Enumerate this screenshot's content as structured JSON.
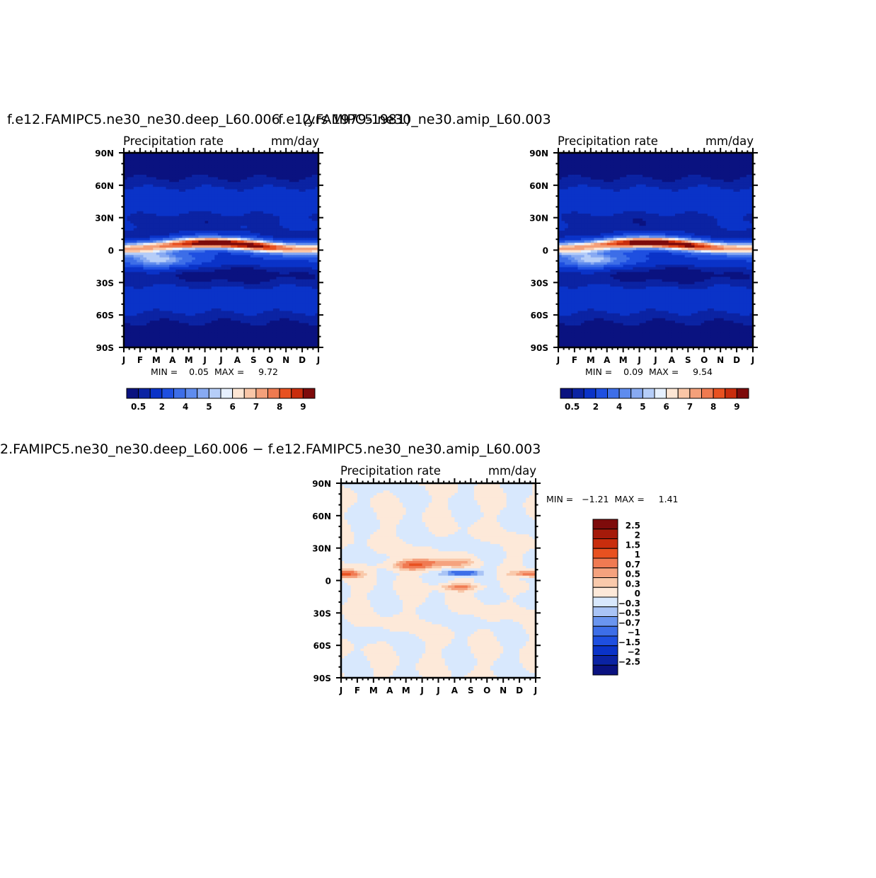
{
  "panels": [
    {
      "case_title": "f.e12.FAMIPC5.ne30_ne30.deep_L60.006",
      "variable": "Precipitation  rate",
      "units": "mm/day",
      "minmax": "MIN =    0.05  MAX =     9.72",
      "colorbar_labels": [
        "0.5",
        "2",
        "4",
        "5",
        "6",
        "7",
        "8",
        "9"
      ]
    },
    {
      "case_title": "f.e12.FAMIPC5.ne30_ne30.amip_L60.003",
      "overlap_title": "(yrs 1979-1981)",
      "variable": "Precipitation  rate",
      "units": "mm/day",
      "minmax": "MIN =    0.09  MAX =     9.54",
      "colorbar_labels": [
        "0.5",
        "2",
        "4",
        "5",
        "6",
        "7",
        "8",
        "9"
      ]
    },
    {
      "case_title": "2.FAMIPC5.ne30_ne30.deep_L60.006  −  f.e12.FAMIPC5.ne30_ne30.amip_L60.003",
      "variable": "Precipitation  rate",
      "units": "mm/day",
      "minmax": "MIN =   −1.21  MAX =     1.41",
      "colorbar_labels": [
        "2.5",
        "2",
        "1.5",
        "1",
        "0.7",
        "0.5",
        "0.3",
        "0",
        "−0.3",
        "−0.5",
        "−0.7",
        "−1",
        "−1.5",
        "−2",
        "−2.5"
      ]
    }
  ],
  "chart_data": [
    {
      "type": "heatmap",
      "title": "f.e12.FAMIPC5.ne30_ne30.deep_L60.006",
      "variable": "Precipitation  rate",
      "units": "mm/day",
      "x_tick_labels": [
        "J",
        "F",
        "M",
        "A",
        "M",
        "J",
        "J",
        "A",
        "S",
        "O",
        "N",
        "D",
        "J"
      ],
      "y_tick_labels": [
        "90N",
        "60N",
        "30N",
        "0",
        "30S",
        "60S",
        "90S"
      ],
      "ylim": [
        -90,
        90
      ],
      "min": 0.05,
      "max": 9.72,
      "levels": [
        0.5,
        1,
        2,
        3,
        4,
        4.5,
        5,
        5.5,
        6,
        6.5,
        7,
        7.5,
        8,
        8.5,
        9
      ],
      "colors": [
        "#0a1280",
        "#0b23a3",
        "#0a33c8",
        "#1e4fe0",
        "#3d6ee8",
        "#5f8cee",
        "#88aaf2",
        "#b5cdf8",
        "#e6f0fe",
        "#fde6d4",
        "#f9c6a7",
        "#f4a07a",
        "#ee7a50",
        "#e85120",
        "#c92d0d",
        "#7e0b0b"
      ],
      "band": {
        "lat": [
          0,
          10
        ],
        "max_months": [
          "J",
          "J",
          "A",
          "S",
          "O",
          "N"
        ]
      }
    },
    {
      "type": "heatmap",
      "title": "f.e12.FAMIPC5.ne30_ne30.amip_L60.003",
      "variable": "Precipitation  rate",
      "units": "mm/day",
      "x_tick_labels": [
        "J",
        "F",
        "M",
        "A",
        "M",
        "J",
        "J",
        "A",
        "S",
        "O",
        "N",
        "D",
        "J"
      ],
      "y_tick_labels": [
        "90N",
        "60N",
        "30N",
        "0",
        "30S",
        "60S",
        "90S"
      ],
      "ylim": [
        -90,
        90
      ],
      "min": 0.09,
      "max": 9.54,
      "levels": [
        0.5,
        1,
        2,
        3,
        4,
        4.5,
        5,
        5.5,
        6,
        6.5,
        7,
        7.5,
        8,
        8.5,
        9
      ],
      "colors": [
        "#0a1280",
        "#0b23a3",
        "#0a33c8",
        "#1e4fe0",
        "#3d6ee8",
        "#5f8cee",
        "#88aaf2",
        "#b5cdf8",
        "#e6f0fe",
        "#fde6d4",
        "#f9c6a7",
        "#f4a07a",
        "#ee7a50",
        "#e85120",
        "#c92d0d",
        "#7e0b0b"
      ]
    },
    {
      "type": "heatmap",
      "title": "2.FAMIPC5.ne30_ne30.deep_L60.006  −  f.e12.FAMIPC5.ne30_ne30.amip_L60.003",
      "variable": "Precipitation  rate",
      "units": "mm/day",
      "x_tick_labels": [
        "J",
        "F",
        "M",
        "A",
        "M",
        "J",
        "J",
        "A",
        "S",
        "O",
        "N",
        "D",
        "J"
      ],
      "y_tick_labels": [
        "90N",
        "60N",
        "30N",
        "0",
        "30S",
        "60S",
        "90S"
      ],
      "ylim": [
        -90,
        90
      ],
      "min": -1.21,
      "max": 1.41,
      "levels": [
        -2.5,
        -2,
        -1.5,
        -1,
        -0.7,
        -0.5,
        -0.3,
        0,
        0.3,
        0.5,
        0.7,
        1,
        1.5,
        2,
        2.5
      ],
      "colors": [
        "#0a1280",
        "#0b23a3",
        "#0a33c8",
        "#1e4fe0",
        "#3d6ee8",
        "#6a95ef",
        "#a9c4f6",
        "#d8e8fd",
        "#fde9d9",
        "#f9c9ab",
        "#f5a27e",
        "#f07a52",
        "#e85120",
        "#c92d0d",
        "#a51a0a",
        "#7e0b0b"
      ]
    }
  ]
}
